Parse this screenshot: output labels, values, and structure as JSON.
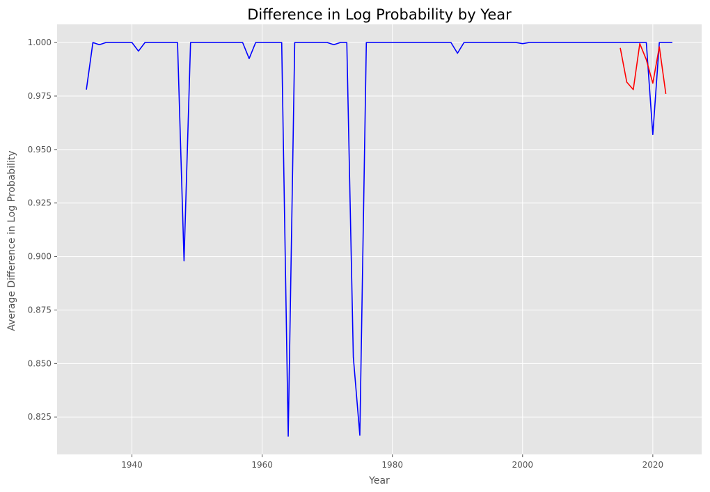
{
  "chart_data": {
    "type": "line",
    "title": "Difference in Log Probability by Year",
    "xlabel": "Year",
    "ylabel": "Average Difference in Log Probability",
    "xlim": [
      1928.5,
      2027.5
    ],
    "ylim": [
      0.8075,
      1.0085
    ],
    "xticks": [
      1940,
      1960,
      1980,
      2000,
      2020
    ],
    "yticks": [
      0.825,
      0.85,
      0.875,
      0.9,
      0.925,
      0.95,
      0.975,
      1.0
    ],
    "grid": true,
    "legend": "none",
    "background_color": "#e5e5e5",
    "grid_color": "#ffffff",
    "series": [
      {
        "name": "blue",
        "color": "#0000ff",
        "x": [
          1933,
          1934,
          1935,
          1936,
          1937,
          1938,
          1939,
          1940,
          1941,
          1942,
          1943,
          1944,
          1945,
          1946,
          1947,
          1948,
          1949,
          1950,
          1951,
          1952,
          1953,
          1954,
          1955,
          1956,
          1957,
          1958,
          1959,
          1960,
          1961,
          1962,
          1963,
          1964,
          1965,
          1966,
          1967,
          1968,
          1969,
          1970,
          1971,
          1972,
          1973,
          1974,
          1975,
          1976,
          1977,
          1978,
          1979,
          1980,
          1981,
          1982,
          1983,
          1984,
          1985,
          1986,
          1987,
          1988,
          1989,
          1990,
          1991,
          1992,
          1993,
          1994,
          1995,
          1996,
          1997,
          1998,
          1999,
          2000,
          2001,
          2002,
          2003,
          2004,
          2005,
          2006,
          2007,
          2008,
          2009,
          2010,
          2011,
          2012,
          2013,
          2014,
          2015,
          2016,
          2017,
          2018,
          2019,
          2020,
          2021,
          2022,
          2023
        ],
        "values": [
          0.978,
          1.0,
          0.999,
          1.0,
          1.0,
          1.0,
          1.0,
          1.0,
          0.996,
          1.0,
          1.0,
          1.0,
          1.0,
          1.0,
          1.0,
          0.898,
          1.0,
          1.0,
          1.0,
          1.0,
          1.0,
          1.0,
          1.0,
          1.0,
          1.0,
          0.9925,
          1.0,
          1.0,
          1.0,
          1.0,
          1.0,
          0.816,
          1.0,
          1.0,
          1.0,
          1.0,
          1.0,
          1.0,
          0.999,
          1.0,
          1.0,
          0.853,
          0.8165,
          1.0,
          1.0,
          1.0,
          1.0,
          1.0,
          1.0,
          1.0,
          1.0,
          1.0,
          1.0,
          1.0,
          1.0,
          1.0,
          1.0,
          0.995,
          1.0,
          1.0,
          1.0,
          1.0,
          1.0,
          1.0,
          1.0,
          1.0,
          1.0,
          0.9995,
          1.0,
          1.0,
          1.0,
          1.0,
          1.0,
          1.0,
          1.0,
          1.0,
          1.0,
          1.0,
          1.0,
          1.0,
          1.0,
          1.0,
          1.0,
          1.0,
          1.0,
          1.0,
          1.0,
          0.957,
          1.0,
          1.0,
          1.0
        ]
      },
      {
        "name": "red",
        "color": "#ff0000",
        "x": [
          2015,
          2016,
          2017,
          2018,
          2019,
          2020,
          2021,
          2022
        ],
        "values": [
          0.9975,
          0.9815,
          0.978,
          0.9995,
          0.992,
          0.981,
          0.998,
          0.976
        ]
      }
    ]
  }
}
